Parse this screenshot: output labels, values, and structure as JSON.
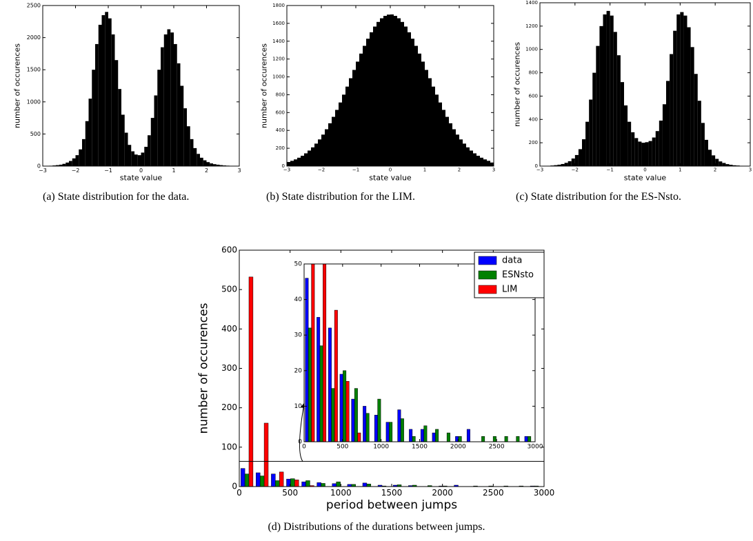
{
  "chart_data": [
    {
      "type": "histogram",
      "caption": "(a) State distribution for the data.",
      "xlabel": "state value",
      "ylabel": "number of occurences",
      "color": "#000000",
      "bins": [
        -3,
        -2.9,
        -2.8,
        -2.7,
        -2.6,
        -2.5,
        -2.4,
        -2.3,
        -2.2,
        -2.1,
        -2,
        -1.9,
        -1.8,
        -1.7,
        -1.6,
        -1.5,
        -1.4,
        -1.3,
        -1.2,
        -1.1,
        -1,
        -0.9,
        -0.8,
        -0.7,
        -0.6,
        -0.5,
        -0.4,
        -0.3,
        -0.2,
        -0.1,
        0,
        0.1,
        0.2,
        0.3,
        0.4,
        0.5,
        0.6,
        0.7,
        0.8,
        0.9,
        1,
        1.1,
        1.2,
        1.3,
        1.4,
        1.5,
        1.6,
        1.7,
        1.8,
        1.9,
        2,
        2.1,
        2.2,
        2.3,
        2.4,
        2.5,
        2.6,
        2.7,
        2.8,
        2.9,
        3
      ],
      "values": [
        2,
        4,
        6,
        10,
        15,
        22,
        35,
        55,
        80,
        120,
        170,
        260,
        420,
        700,
        1050,
        1500,
        1900,
        2200,
        2350,
        2400,
        2300,
        2050,
        1650,
        1200,
        800,
        520,
        330,
        230,
        180,
        170,
        210,
        300,
        480,
        750,
        1100,
        1500,
        1850,
        2050,
        2130,
        2080,
        1900,
        1600,
        1250,
        900,
        620,
        420,
        280,
        190,
        130,
        90,
        62,
        42,
        30,
        22,
        15,
        10,
        7,
        5,
        3,
        2
      ],
      "xlim": [
        -3,
        3
      ],
      "ylim": [
        0,
        2500
      ],
      "xticks": [
        {
          "value": -3,
          "label": "−3"
        },
        {
          "value": -2,
          "label": "−2"
        },
        {
          "value": -1,
          "label": "−1"
        },
        0,
        1,
        2,
        3
      ],
      "yticks": [
        0,
        500,
        1000,
        1500,
        2000,
        2500
      ]
    },
    {
      "type": "histogram",
      "caption": "(b) State distribution for the LIM.",
      "xlabel": "state value",
      "ylabel": "number of occurences",
      "color": "#000000",
      "bins": [
        -3,
        -2.9,
        -2.8,
        -2.7,
        -2.6,
        -2.5,
        -2.4,
        -2.3,
        -2.2,
        -2.1,
        -2,
        -1.9,
        -1.8,
        -1.7,
        -1.6,
        -1.5,
        -1.4,
        -1.3,
        -1.2,
        -1.1,
        -1,
        -0.9,
        -0.8,
        -0.7,
        -0.6,
        -0.5,
        -0.4,
        -0.3,
        -0.2,
        -0.1,
        0,
        0.1,
        0.2,
        0.3,
        0.4,
        0.5,
        0.6,
        0.7,
        0.8,
        0.9,
        1,
        1.1,
        1.2,
        1.3,
        1.4,
        1.5,
        1.6,
        1.7,
        1.8,
        1.9,
        2,
        2.1,
        2.2,
        2.3,
        2.4,
        2.5,
        2.6,
        2.7,
        2.8,
        2.9,
        3
      ],
      "values": [
        46,
        59,
        75,
        94,
        116,
        143,
        174,
        210,
        252,
        299,
        353,
        413,
        480,
        552,
        630,
        713,
        801,
        891,
        985,
        1078,
        1171,
        1261,
        1348,
        1428,
        1500,
        1564,
        1616,
        1657,
        1684,
        1698,
        1700,
        1684,
        1657,
        1616,
        1564,
        1500,
        1428,
        1348,
        1261,
        1171,
        1078,
        985,
        891,
        801,
        713,
        630,
        552,
        480,
        413,
        353,
        299,
        252,
        210,
        174,
        143,
        116,
        94,
        75,
        59,
        40
      ],
      "xlim": [
        -3,
        3
      ],
      "ylim": [
        0,
        1800
      ],
      "xticks": [
        {
          "value": -3,
          "label": "−3"
        },
        {
          "value": -2,
          "label": "−2"
        },
        {
          "value": -1,
          "label": "−1"
        },
        0,
        1,
        2,
        3
      ],
      "yticks": [
        0,
        200,
        400,
        600,
        800,
        1000,
        1200,
        1400,
        1600,
        1800
      ]
    },
    {
      "type": "histogram",
      "caption": "(c) State distribution for the ES-Nsto.",
      "xlabel": "state value",
      "ylabel": "number of occurences",
      "color": "#000000",
      "bins": [
        -3,
        -2.9,
        -2.8,
        -2.7,
        -2.6,
        -2.5,
        -2.4,
        -2.3,
        -2.2,
        -2.1,
        -2,
        -1.9,
        -1.8,
        -1.7,
        -1.6,
        -1.5,
        -1.4,
        -1.3,
        -1.2,
        -1.1,
        -1,
        -0.9,
        -0.8,
        -0.7,
        -0.6,
        -0.5,
        -0.4,
        -0.3,
        -0.2,
        -0.1,
        0,
        0.1,
        0.2,
        0.3,
        0.4,
        0.5,
        0.6,
        0.7,
        0.8,
        0.9,
        1,
        1.1,
        1.2,
        1.3,
        1.4,
        1.5,
        1.6,
        1.7,
        1.8,
        1.9,
        2,
        2.1,
        2.2,
        2.3,
        2.4,
        2.5,
        2.6,
        2.7,
        2.8,
        2.9,
        3
      ],
      "values": [
        1,
        2,
        3,
        5,
        8,
        12,
        18,
        28,
        42,
        65,
        95,
        145,
        230,
        380,
        570,
        800,
        1030,
        1200,
        1300,
        1330,
        1290,
        1150,
        950,
        720,
        520,
        380,
        290,
        240,
        210,
        200,
        205,
        215,
        245,
        300,
        390,
        530,
        730,
        960,
        1160,
        1300,
        1320,
        1290,
        1190,
        1020,
        790,
        560,
        370,
        225,
        140,
        92,
        62,
        40,
        27,
        17,
        11,
        7,
        5,
        3,
        2,
        1
      ],
      "xlim": [
        -3,
        3
      ],
      "ylim": [
        0,
        1400
      ],
      "xticks": [
        {
          "value": -3,
          "label": "−3"
        },
        {
          "value": -2,
          "label": "−2"
        },
        {
          "value": -1,
          "label": "−1"
        },
        0,
        1,
        2,
        3
      ],
      "yticks": [
        0,
        200,
        400,
        600,
        800,
        1000,
        1200,
        1400
      ]
    },
    {
      "type": "grouped_histogram",
      "caption": "(d) Distributions of the durations between jumps.",
      "xlabel": "period between jumps",
      "ylabel": "number of occurences",
      "bins": [
        0,
        150,
        300,
        450,
        600,
        750,
        900,
        1050,
        1200,
        1350,
        1500,
        1650,
        1800,
        1950,
        2100,
        2250,
        2400,
        2550,
        2700,
        2850,
        3000
      ],
      "series": [
        {
          "name": "data",
          "color": "#0000ff",
          "values": [
            46,
            35,
            32,
            19,
            12,
            10,
            7.5,
            5.5,
            9,
            3.5,
            3.5,
            2.5,
            0,
            1.5,
            3.5,
            0,
            0,
            0,
            0,
            1.5
          ]
        },
        {
          "name": "ESNsto",
          "color": "#008000",
          "values": [
            32,
            27,
            15,
            20,
            15,
            8,
            12,
            5.5,
            6.5,
            1.5,
            4.5,
            3.5,
            2.5,
            1.5,
            0,
            1.5,
            1.5,
            1.5,
            1.5,
            1.5
          ]
        },
        {
          "name": "LIM",
          "color": "#ff0000",
          "values": [
            532,
            161,
            37,
            17,
            2.5,
            0,
            0,
            0,
            0,
            0,
            0,
            0,
            0,
            0,
            0,
            0,
            0,
            0,
            0,
            0
          ]
        }
      ],
      "xlim": [
        0,
        3000
      ],
      "ylim": [
        0,
        600
      ],
      "xticks": [
        0,
        500,
        1000,
        1500,
        2000,
        2500,
        3000
      ],
      "yticks": [
        0,
        100,
        200,
        300,
        400,
        500,
        600
      ],
      "legend": "upper right",
      "inset": {
        "xlim": [
          0,
          3000
        ],
        "ylim": [
          0,
          50
        ],
        "xticks": [
          0,
          500,
          1000,
          1500,
          2000,
          2500,
          3000
        ],
        "yticks": [
          0,
          10,
          20,
          30,
          40,
          50
        ]
      }
    }
  ]
}
